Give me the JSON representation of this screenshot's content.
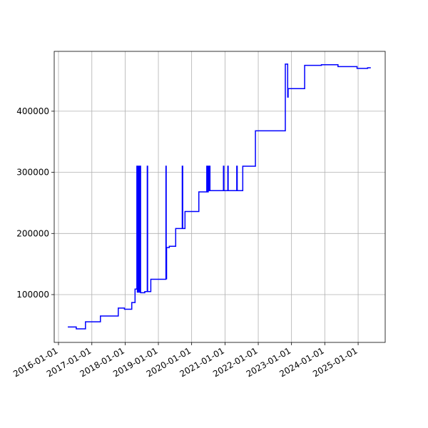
{
  "chart_data": {
    "type": "line",
    "drawstyle": "steps-post",
    "color": "#0000ff",
    "grid": true,
    "x": [
      "2016-04-12",
      "2016-07-14",
      "2016-10-23",
      "2017-04-05",
      "2017-10-18",
      "2017-12-25",
      "2018-03-15",
      "2018-04-20",
      "2018-05-10",
      "2018-05-15",
      "2018-05-25",
      "2018-06-01",
      "2018-06-10",
      "2018-06-20",
      "2018-08-05",
      "2018-09-01",
      "2018-09-05",
      "2018-10-10",
      "2019-03-25",
      "2019-03-28",
      "2019-04-01",
      "2019-05-01",
      "2019-07-10",
      "2019-09-20",
      "2019-09-25",
      "2019-10-20",
      "2020-03-20",
      "2020-06-15",
      "2020-06-20",
      "2020-07-01",
      "2020-07-05",
      "2020-07-15",
      "2020-07-20",
      "2020-12-15",
      "2020-12-20",
      "2021-02-01",
      "2021-02-05",
      "2021-05-10",
      "2021-05-15",
      "2021-07-15",
      "2021-12-01",
      "2022-10-25",
      "2022-11-20",
      "2022-11-25",
      "2023-05-25",
      "2023-11-25",
      "2024-05-25",
      "2024-12-20",
      "2025-04-15",
      "2025-05-20"
    ],
    "values": [
      47000,
      44000,
      55500,
      65000,
      78000,
      76000,
      87000,
      109000,
      310000,
      104000,
      310000,
      104000,
      310000,
      103000,
      105000,
      310000,
      105000,
      125000,
      310000,
      126000,
      177000,
      179000,
      208000,
      310000,
      208000,
      236000,
      268000,
      310000,
      268000,
      310000,
      270000,
      310000,
      270000,
      310000,
      270000,
      310000,
      270000,
      310000,
      270000,
      310000,
      368000,
      477000,
      423000,
      437000,
      475000,
      476000,
      473000,
      470000,
      471000,
      471000
    ],
    "xlim": [
      "2015-11-15",
      "2025-10-25"
    ],
    "xticks": [
      "2016-01-01",
      "2017-01-01",
      "2018-01-01",
      "2019-01-01",
      "2020-01-01",
      "2021-01-01",
      "2022-01-01",
      "2023-01-01",
      "2024-01-01",
      "2025-01-01"
    ],
    "ylim": [
      21800,
      497900
    ],
    "yticks": [
      100000,
      200000,
      300000,
      400000
    ]
  }
}
